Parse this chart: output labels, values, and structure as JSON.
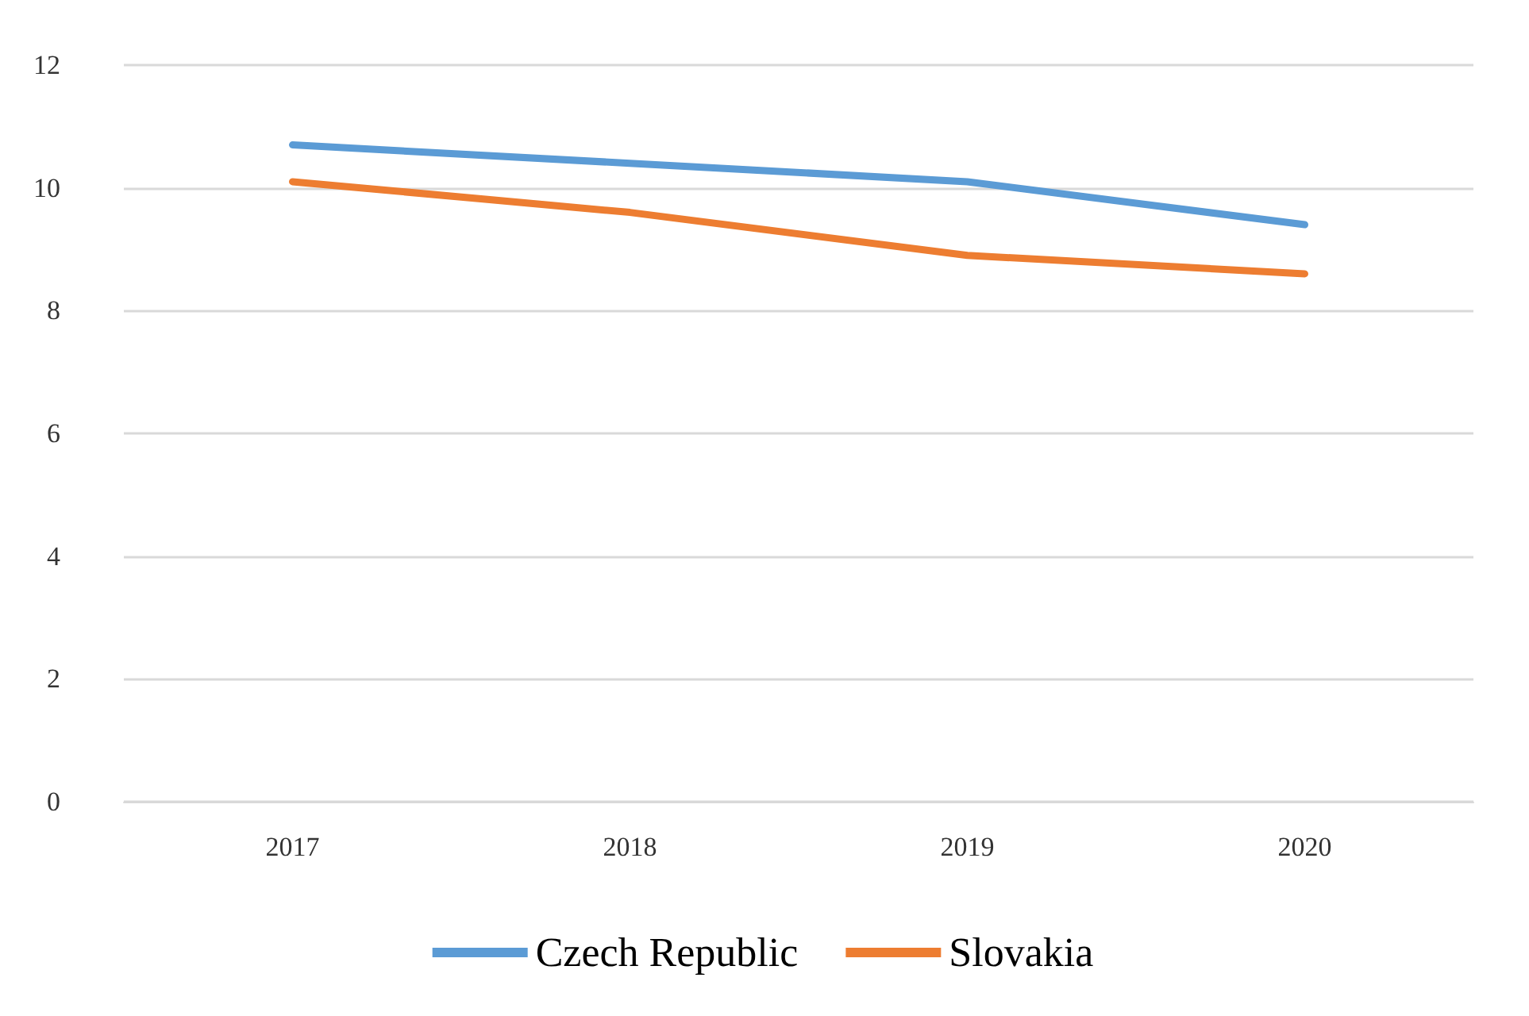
{
  "chart_data": {
    "type": "line",
    "categories": [
      "2017",
      "2018",
      "2019",
      "2020"
    ],
    "series": [
      {
        "name": "Czech Republic",
        "color": "#5b9bd5",
        "values": [
          10.7,
          10.4,
          10.1,
          9.4
        ]
      },
      {
        "name": "Slovakia",
        "color": "#ed7d31",
        "values": [
          10.1,
          9.6,
          8.9,
          8.6
        ]
      }
    ],
    "ylim": [
      0,
      12
    ],
    "yticks": [
      0,
      2,
      4,
      6,
      8,
      10,
      12
    ],
    "grid": "y",
    "legend": "bottom",
    "marker": "none",
    "line_style": "solid"
  }
}
